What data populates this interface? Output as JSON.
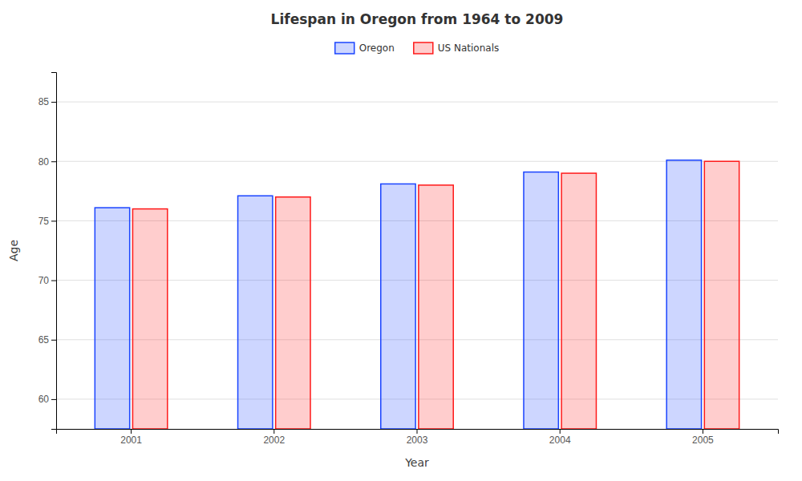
{
  "chart_data": {
    "type": "bar",
    "title": "Lifespan in Oregon from 1964 to 2009",
    "x_label": "Year",
    "y_label": "Age",
    "categories": [
      "2001",
      "2002",
      "2003",
      "2004",
      "2005"
    ],
    "series": [
      {
        "name": "Oregon",
        "color": "#1a44ff",
        "values": [
          76.1,
          77.1,
          78.1,
          79.1,
          80.1
        ]
      },
      {
        "name": "US Nationals",
        "color": "#ff1a1a",
        "values": [
          76.0,
          77.0,
          78.0,
          79.0,
          80.0
        ]
      }
    ],
    "ylim": [
      57.5,
      87.5
    ],
    "yticks": [
      60,
      65,
      70,
      75,
      80,
      85
    ],
    "grid": true,
    "legend": "top"
  }
}
